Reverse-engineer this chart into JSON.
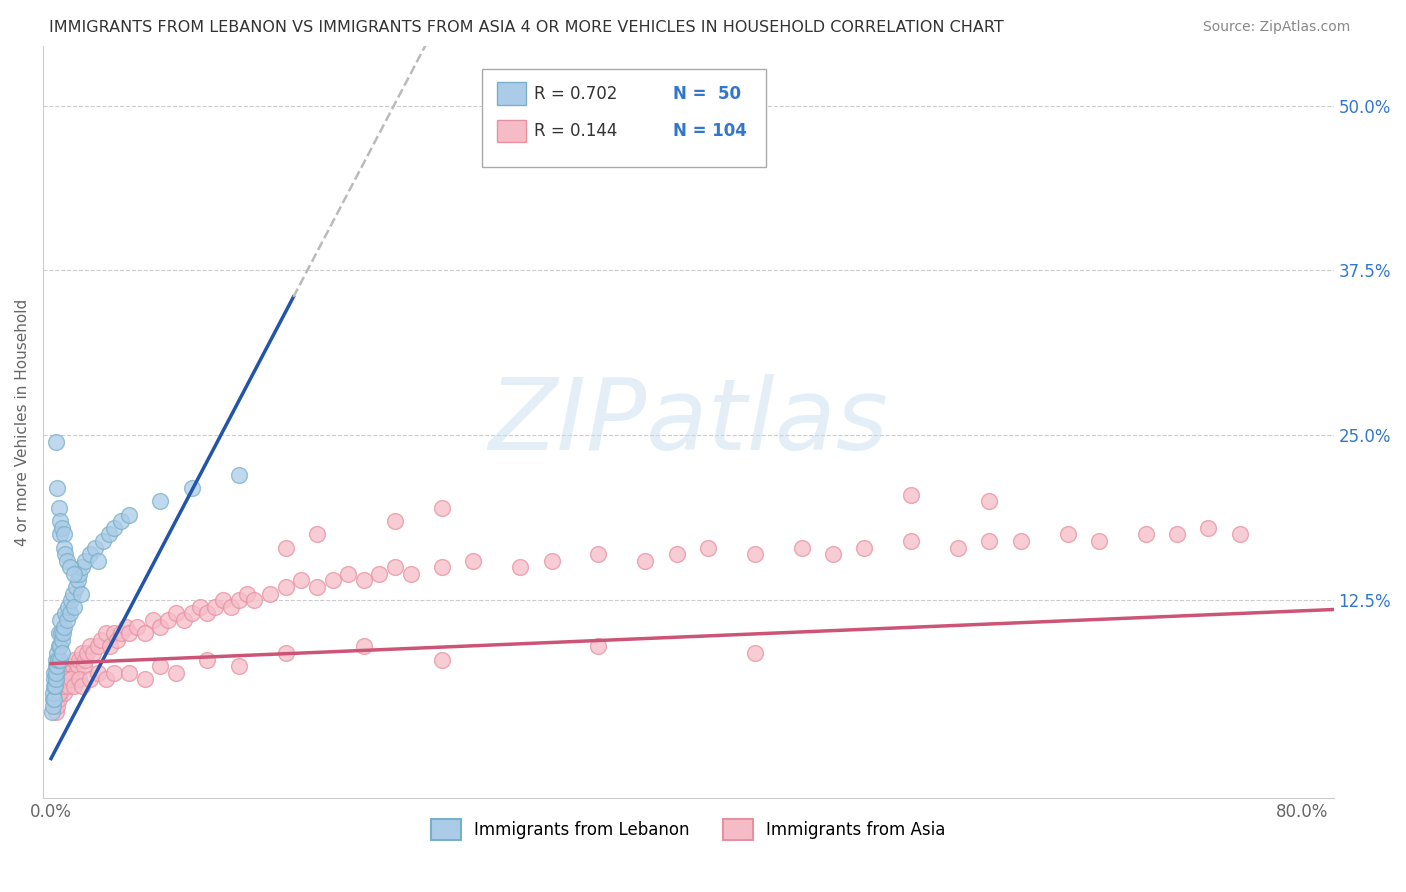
{
  "title": "IMMIGRANTS FROM LEBANON VS IMMIGRANTS FROM ASIA 4 OR MORE VEHICLES IN HOUSEHOLD CORRELATION CHART",
  "source": "Source: ZipAtlas.com",
  "ylabel": "4 or more Vehicles in Household",
  "x_ticks": [
    0.0,
    0.1,
    0.2,
    0.3,
    0.4,
    0.5,
    0.6,
    0.7,
    0.8
  ],
  "y_ticks": [
    0.0,
    0.125,
    0.25,
    0.375,
    0.5
  ],
  "y_tick_labels": [
    "",
    "12.5%",
    "25.0%",
    "37.5%",
    "50.0%"
  ],
  "xlim": [
    -0.005,
    0.82
  ],
  "ylim": [
    -0.025,
    0.545
  ],
  "legend_r1": "R = 0.702",
  "legend_n1": "N =  50",
  "legend_r2": "R = 0.144",
  "legend_n2": "N = 104",
  "legend_label1": "Immigrants from Lebanon",
  "legend_label2": "Immigrants from Asia",
  "blue_dot_face": "#aacce8",
  "blue_dot_edge": "#7aafc8",
  "pink_dot_face": "#f5bcc8",
  "pink_dot_edge": "#e890a0",
  "blue_line_color": "#2255aa",
  "pink_line_color": "#cc5577",
  "dashed_line_color": "#bbbbbb",
  "watermark_text": "ZIPatlas",
  "watermark_color": "#c8dff0",
  "background_color": "#ffffff",
  "grid_color": "#cccccc",
  "title_color": "#333333",
  "axis_color": "#666666",
  "right_axis_color": "#3377cc",
  "legend_value_color": "#3377cc",
  "leb_line_x0": 0.0,
  "leb_line_y0": 0.005,
  "leb_line_x1": 0.155,
  "leb_line_y1": 0.355,
  "leb_line_solid_end": 0.155,
  "leb_line_dash_end": 0.82,
  "asia_line_x0": 0.0,
  "asia_line_y0": 0.077,
  "asia_line_x1": 0.82,
  "asia_line_y1": 0.118,
  "leb_pts_x": [
    0.0008,
    0.001,
    0.0012,
    0.0015,
    0.0018,
    0.002,
    0.002,
    0.0022,
    0.0025,
    0.003,
    0.003,
    0.0032,
    0.0035,
    0.004,
    0.004,
    0.0042,
    0.005,
    0.005,
    0.0055,
    0.006,
    0.006,
    0.0065,
    0.007,
    0.007,
    0.0075,
    0.008,
    0.009,
    0.01,
    0.011,
    0.012,
    0.013,
    0.014,
    0.015,
    0.016,
    0.017,
    0.018,
    0.019,
    0.02,
    0.022,
    0.025,
    0.028,
    0.03,
    0.033,
    0.037,
    0.04,
    0.045,
    0.05,
    0.07,
    0.09,
    0.12
  ],
  "leb_pts_y": [
    0.04,
    0.05,
    0.045,
    0.055,
    0.05,
    0.06,
    0.07,
    0.065,
    0.06,
    0.065,
    0.075,
    0.07,
    0.08,
    0.075,
    0.085,
    0.08,
    0.09,
    0.1,
    0.11,
    0.08,
    0.09,
    0.1,
    0.095,
    0.085,
    0.1,
    0.105,
    0.115,
    0.11,
    0.12,
    0.115,
    0.125,
    0.13,
    0.12,
    0.135,
    0.14,
    0.145,
    0.13,
    0.15,
    0.155,
    0.16,
    0.165,
    0.155,
    0.17,
    0.175,
    0.18,
    0.185,
    0.19,
    0.2,
    0.21,
    0.22
  ],
  "leb_outlier_x": [
    0.003,
    0.004,
    0.005,
    0.006,
    0.006,
    0.007,
    0.008,
    0.008,
    0.009,
    0.01,
    0.012,
    0.015
  ],
  "leb_outlier_y": [
    0.245,
    0.21,
    0.195,
    0.185,
    0.175,
    0.18,
    0.175,
    0.165,
    0.16,
    0.155,
    0.15,
    0.145
  ],
  "asia_pts_x": [
    0.003,
    0.004,
    0.005,
    0.006,
    0.007,
    0.008,
    0.009,
    0.01,
    0.011,
    0.012,
    0.013,
    0.014,
    0.015,
    0.016,
    0.017,
    0.018,
    0.02,
    0.021,
    0.022,
    0.023,
    0.025,
    0.027,
    0.03,
    0.032,
    0.035,
    0.038,
    0.04,
    0.042,
    0.045,
    0.048,
    0.05,
    0.055,
    0.06,
    0.065,
    0.07,
    0.075,
    0.08,
    0.085,
    0.09,
    0.095,
    0.1,
    0.105,
    0.11,
    0.115,
    0.12,
    0.125,
    0.13,
    0.14,
    0.15,
    0.16,
    0.17,
    0.18,
    0.19,
    0.2,
    0.21,
    0.22,
    0.23,
    0.25,
    0.27,
    0.3,
    0.32,
    0.35,
    0.38,
    0.4,
    0.42,
    0.45,
    0.48,
    0.5,
    0.52,
    0.55,
    0.58,
    0.6,
    0.62,
    0.65,
    0.67,
    0.7,
    0.72,
    0.74,
    0.76,
    0.003,
    0.005,
    0.007,
    0.009,
    0.011,
    0.013,
    0.015,
    0.018,
    0.02,
    0.025,
    0.03,
    0.035,
    0.04,
    0.05,
    0.06,
    0.07,
    0.08,
    0.1,
    0.12,
    0.15,
    0.2,
    0.25,
    0.35,
    0.45
  ],
  "asia_pts_y": [
    0.04,
    0.045,
    0.05,
    0.055,
    0.06,
    0.055,
    0.06,
    0.065,
    0.07,
    0.065,
    0.07,
    0.075,
    0.08,
    0.07,
    0.075,
    0.08,
    0.085,
    0.075,
    0.08,
    0.085,
    0.09,
    0.085,
    0.09,
    0.095,
    0.1,
    0.09,
    0.1,
    0.095,
    0.1,
    0.105,
    0.1,
    0.105,
    0.1,
    0.11,
    0.105,
    0.11,
    0.115,
    0.11,
    0.115,
    0.12,
    0.115,
    0.12,
    0.125,
    0.12,
    0.125,
    0.13,
    0.125,
    0.13,
    0.135,
    0.14,
    0.135,
    0.14,
    0.145,
    0.14,
    0.145,
    0.15,
    0.145,
    0.15,
    0.155,
    0.15,
    0.155,
    0.16,
    0.155,
    0.16,
    0.165,
    0.16,
    0.165,
    0.16,
    0.165,
    0.17,
    0.165,
    0.17,
    0.17,
    0.175,
    0.17,
    0.175,
    0.175,
    0.18,
    0.175,
    0.06,
    0.055,
    0.06,
    0.065,
    0.06,
    0.065,
    0.06,
    0.065,
    0.06,
    0.065,
    0.07,
    0.065,
    0.07,
    0.07,
    0.065,
    0.075,
    0.07,
    0.08,
    0.075,
    0.085,
    0.09,
    0.08,
    0.09,
    0.085
  ],
  "asia_high_x": [
    0.15,
    0.17,
    0.22,
    0.25,
    0.55,
    0.6
  ],
  "asia_high_y": [
    0.165,
    0.175,
    0.185,
    0.195,
    0.205,
    0.2
  ]
}
